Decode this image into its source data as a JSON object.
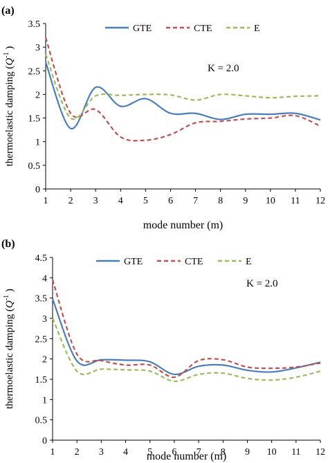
{
  "chart_data": [
    {
      "type": "line",
      "panel_label": "(a)",
      "annotation": "K = 2.0",
      "xlabel": "mode number (m)",
      "ylabel_main": "thermoelastic damping (",
      "ylabel_q": "Q",
      "ylabel_exp": "-1",
      "ylabel_end": " )",
      "x": [
        1,
        2,
        3,
        4,
        5,
        6,
        7,
        8,
        9,
        10,
        11,
        12
      ],
      "xlim": [
        1,
        12
      ],
      "ylim": [
        0,
        3.5
      ],
      "yticks": [
        "0",
        "0.5",
        "1",
        "1.5",
        "2",
        "2.5",
        "3",
        "3.5"
      ],
      "xticks": [
        "1",
        "2",
        "3",
        "4",
        "5",
        "6",
        "7",
        "8",
        "9",
        "10",
        "11",
        "12"
      ],
      "grid": false,
      "legend_position": "top",
      "series": [
        {
          "name": "GTE",
          "style": "solid",
          "color": "#4a7ebb",
          "values": [
            2.68,
            1.28,
            2.15,
            1.75,
            1.91,
            1.6,
            1.6,
            1.47,
            1.58,
            1.58,
            1.6,
            1.46
          ]
        },
        {
          "name": "CTE",
          "style": "dashed",
          "color": "#c0504d",
          "values": [
            3.2,
            1.6,
            1.68,
            1.1,
            1.03,
            1.15,
            1.4,
            1.43,
            1.48,
            1.5,
            1.55,
            1.33
          ]
        },
        {
          "name": "E",
          "style": "dashed",
          "color": "#9bbb59",
          "values": [
            2.85,
            1.5,
            1.97,
            1.98,
            2.0,
            1.99,
            1.88,
            2.0,
            1.97,
            1.93,
            1.96,
            1.97
          ]
        }
      ]
    },
    {
      "type": "line",
      "panel_label": "(b)",
      "annotation": "K = 2.0",
      "xlabel": "mode number (m)",
      "ylabel_main": "thermoelastic damping (",
      "ylabel_q": "Q",
      "ylabel_exp": "-1",
      "ylabel_end": " )",
      "x": [
        1,
        2,
        3,
        4,
        5,
        6,
        7,
        8,
        9,
        10,
        11,
        12
      ],
      "xlim": [
        1,
        12
      ],
      "ylim": [
        0,
        4.5
      ],
      "yticks": [
        "0",
        "0.5",
        "1",
        "1.5",
        "2",
        "2.5",
        "3",
        "3.5",
        "4",
        "4.5"
      ],
      "xticks": [
        "1",
        "2",
        "3",
        "4",
        "5",
        "6",
        "7",
        "8",
        "9",
        "10",
        "11",
        "12"
      ],
      "grid": false,
      "legend_position": "top",
      "series": [
        {
          "name": "GTE",
          "style": "solid",
          "color": "#4a7ebb",
          "values": [
            3.48,
            1.95,
            1.98,
            1.97,
            1.93,
            1.62,
            1.82,
            1.85,
            1.72,
            1.68,
            1.78,
            1.92
          ]
        },
        {
          "name": "CTE",
          "style": "dashed",
          "color": "#c0504d",
          "values": [
            3.95,
            2.12,
            1.96,
            1.85,
            1.85,
            1.55,
            1.96,
            1.98,
            1.8,
            1.77,
            1.8,
            1.9
          ]
        },
        {
          "name": "E",
          "style": "dashed",
          "color": "#9bbb59",
          "values": [
            3.0,
            1.7,
            1.75,
            1.73,
            1.7,
            1.45,
            1.62,
            1.65,
            1.52,
            1.48,
            1.55,
            1.7
          ]
        }
      ]
    }
  ]
}
